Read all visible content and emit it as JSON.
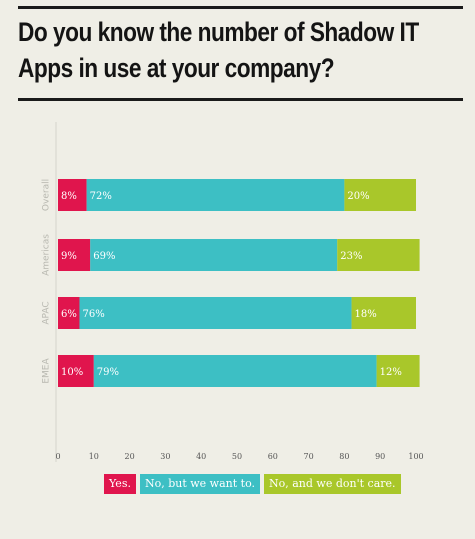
{
  "title": "Do you know the number of Shadow IT Apps in use at your company?",
  "colors": {
    "yes": "#e0154d",
    "no_want": "#3dbfc4",
    "no_care": "#a9c72a"
  },
  "chart_data": {
    "type": "bar",
    "orientation": "horizontal",
    "stacked": true,
    "categories": [
      "Overall",
      "Americas",
      "APAC",
      "EMEA"
    ],
    "series": [
      {
        "name": "Yes.",
        "values": [
          8,
          9,
          6,
          10
        ]
      },
      {
        "name": "No, but we want to.",
        "values": [
          72,
          69,
          76,
          79
        ]
      },
      {
        "name": "No, and we don't care.",
        "values": [
          20,
          23,
          18,
          12
        ]
      }
    ],
    "data_labels": [
      [
        "8%",
        "72%",
        "20%"
      ],
      [
        "9%",
        "69%",
        "23%"
      ],
      [
        "6%",
        "76%",
        "18%"
      ],
      [
        "10%",
        "79%",
        "12%"
      ]
    ],
    "xlim": [
      0,
      100
    ],
    "xticks": [
      0,
      10,
      20,
      30,
      40,
      50,
      60,
      70,
      80,
      90,
      100
    ],
    "legend_position": "bottom",
    "grid": false
  }
}
